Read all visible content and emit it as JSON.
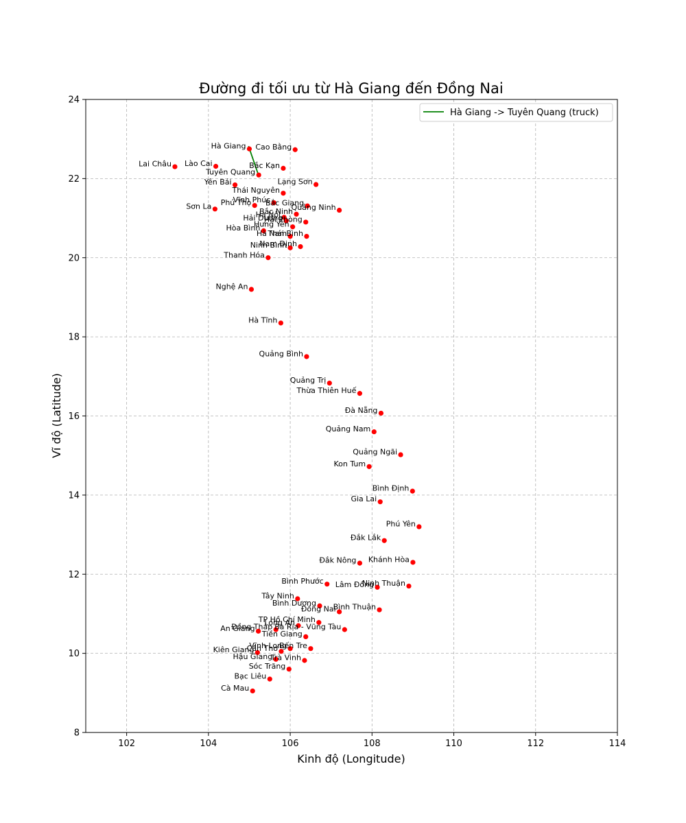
{
  "chart_data": {
    "type": "scatter",
    "title": "Đường đi tối ưu từ Hà Giang đến Đồng Nai",
    "xlabel": "Kinh độ (Longitude)",
    "ylabel": "Vĩ độ (Latitude)",
    "xlim": [
      101,
      114
    ],
    "ylim": [
      8,
      24
    ],
    "xticks": [
      "102",
      "104",
      "106",
      "108",
      "110",
      "112",
      "114"
    ],
    "yticks": [
      "8",
      "10",
      "12",
      "14",
      "16",
      "18",
      "20",
      "22",
      "24"
    ],
    "grid": true,
    "legend_position": "top-right",
    "point_color": "#ff0000",
    "route": {
      "name": "Hà Giang -> Tuyên Quang (truck)",
      "color": "#008000",
      "path": [
        [
          104.98,
          22.82
        ],
        [
          105.21,
          22.13
        ]
      ]
    },
    "points": [
      {
        "name": "Hà Giang",
        "x": 105.0,
        "y": 22.75
      },
      {
        "name": "Cao Bằng",
        "x": 106.12,
        "y": 22.73
      },
      {
        "name": "Lai Châu",
        "x": 103.18,
        "y": 22.3
      },
      {
        "name": "Lào Cai",
        "x": 104.18,
        "y": 22.31
      },
      {
        "name": "Bắc Kạn",
        "x": 105.83,
        "y": 22.26
      },
      {
        "name": "Tuyên Quang",
        "x": 105.23,
        "y": 22.09
      },
      {
        "name": "Lạng Sơn",
        "x": 106.63,
        "y": 21.85
      },
      {
        "name": "Yên Bái",
        "x": 104.65,
        "y": 21.84
      },
      {
        "name": "Thái Nguyên",
        "x": 105.83,
        "y": 21.63
      },
      {
        "name": "Vĩnh Phúc",
        "x": 105.6,
        "y": 21.39
      },
      {
        "name": "Bắc Giang",
        "x": 106.42,
        "y": 21.31
      },
      {
        "name": "Sơn La",
        "x": 104.16,
        "y": 21.23
      },
      {
        "name": "Phú Thọ",
        "x": 105.13,
        "y": 21.32
      },
      {
        "name": "Quảng Ninh",
        "x": 107.2,
        "y": 21.2
      },
      {
        "name": "Bắc Ninh",
        "x": 106.15,
        "y": 21.1
      },
      {
        "name": "Hà Nội",
        "x": 105.85,
        "y": 21.02
      },
      {
        "name": "Hải Dương",
        "x": 105.9,
        "y": 20.93
      },
      {
        "name": "Hải Phòng",
        "x": 106.38,
        "y": 20.9
      },
      {
        "name": "Hưng Yên",
        "x": 106.06,
        "y": 20.78
      },
      {
        "name": "Hòa Bình",
        "x": 105.35,
        "y": 20.68
      },
      {
        "name": "Hà Nam",
        "x": 106.0,
        "y": 20.54
      },
      {
        "name": "Thái Bình",
        "x": 106.4,
        "y": 20.54
      },
      {
        "name": "Nam Định",
        "x": 106.25,
        "y": 20.28
      },
      {
        "name": "Ninh Bình",
        "x": 106.0,
        "y": 20.25
      },
      {
        "name": "Thanh Hóa",
        "x": 105.46,
        "y": 20.0
      },
      {
        "name": "Nghệ An",
        "x": 105.05,
        "y": 19.2
      },
      {
        "name": "Hà Tĩnh",
        "x": 105.77,
        "y": 18.35
      },
      {
        "name": "Quảng Bình",
        "x": 106.4,
        "y": 17.5
      },
      {
        "name": "Quảng Trị",
        "x": 106.96,
        "y": 16.83
      },
      {
        "name": "Thừa Thiên Huế",
        "x": 107.7,
        "y": 16.57
      },
      {
        "name": "Đà Nẵng",
        "x": 108.22,
        "y": 16.07
      },
      {
        "name": "Quảng Nam",
        "x": 108.05,
        "y": 15.6
      },
      {
        "name": "Quảng Ngãi",
        "x": 108.7,
        "y": 15.02
      },
      {
        "name": "Kon Tum",
        "x": 107.93,
        "y": 14.72
      },
      {
        "name": "Bình Định",
        "x": 108.99,
        "y": 14.1
      },
      {
        "name": "Gia Lai",
        "x": 108.2,
        "y": 13.83
      },
      {
        "name": "Phú Yên",
        "x": 109.15,
        "y": 13.2
      },
      {
        "name": "Đắk Lắk",
        "x": 108.3,
        "y": 12.85
      },
      {
        "name": "Khánh Hòa",
        "x": 109.0,
        "y": 12.3
      },
      {
        "name": "Đắk Nông",
        "x": 107.7,
        "y": 12.28
      },
      {
        "name": "Bình Phước",
        "x": 106.9,
        "y": 11.75
      },
      {
        "name": "Lâm Đồng",
        "x": 108.13,
        "y": 11.67
      },
      {
        "name": "Ninh Thuận",
        "x": 108.9,
        "y": 11.7
      },
      {
        "name": "Tây Ninh",
        "x": 106.18,
        "y": 11.38
      },
      {
        "name": "Bình Dương",
        "x": 106.72,
        "y": 11.2
      },
      {
        "name": "Đồng Nai",
        "x": 107.2,
        "y": 11.05
      },
      {
        "name": "Bình Thuận",
        "x": 108.18,
        "y": 11.1
      },
      {
        "name": "TP Hồ Chí Minh",
        "x": 106.7,
        "y": 10.78
      },
      {
        "name": "Bà Rịa - Vũng Tàu",
        "x": 107.33,
        "y": 10.6
      },
      {
        "name": "Long An",
        "x": 106.2,
        "y": 10.7
      },
      {
        "name": "An Giang",
        "x": 105.22,
        "y": 10.56
      },
      {
        "name": "Đồng Tháp",
        "x": 105.65,
        "y": 10.6
      },
      {
        "name": "Tiền Giang",
        "x": 106.38,
        "y": 10.42
      },
      {
        "name": "Vĩnh Long",
        "x": 106.0,
        "y": 10.12
      },
      {
        "name": "Bến Tre",
        "x": 106.5,
        "y": 10.12
      },
      {
        "name": "Kiên Giang",
        "x": 105.2,
        "y": 10.02
      },
      {
        "name": "Cần Thơ",
        "x": 105.78,
        "y": 10.05
      },
      {
        "name": "Trà Vinh",
        "x": 106.35,
        "y": 9.82
      },
      {
        "name": "Hậu Giang",
        "x": 105.65,
        "y": 9.85
      },
      {
        "name": "Sóc Trăng",
        "x": 105.97,
        "y": 9.6
      },
      {
        "name": "Bạc Liêu",
        "x": 105.5,
        "y": 9.35
      },
      {
        "name": "Cà Mau",
        "x": 105.08,
        "y": 9.05
      }
    ]
  }
}
